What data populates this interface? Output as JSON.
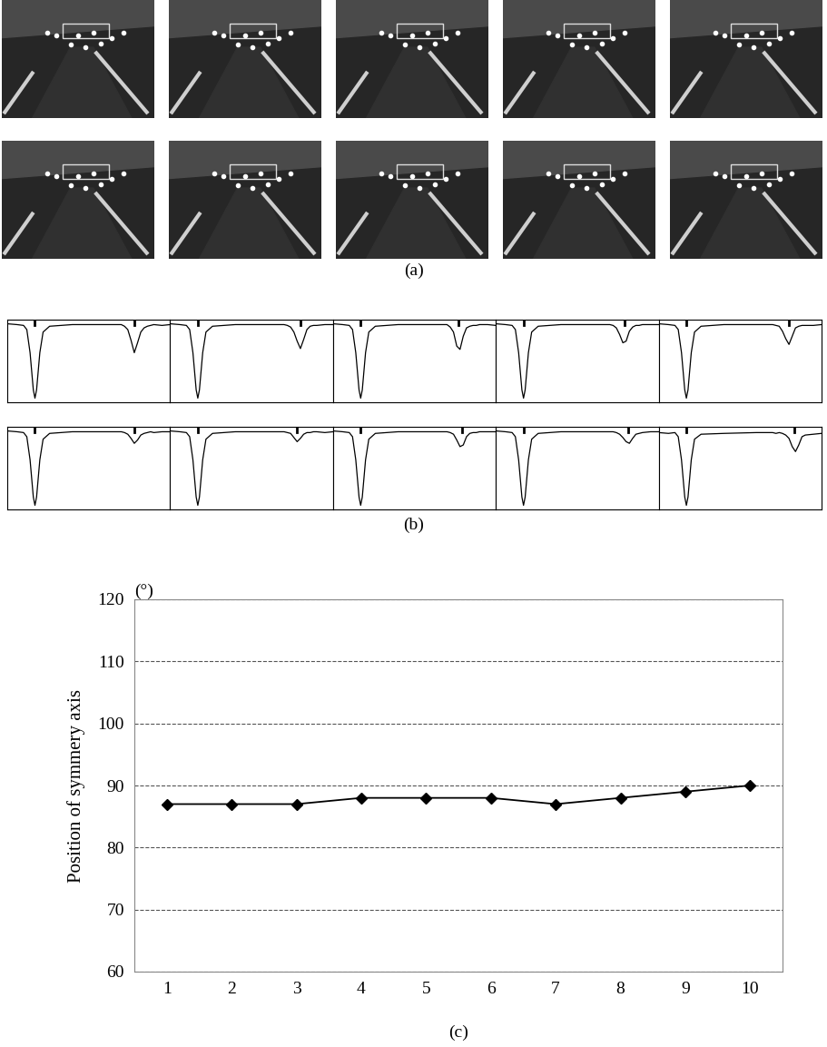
{
  "panel_a": {
    "label": "(a)",
    "frames": 10
  },
  "panel_b": {
    "label": "(b)",
    "xlim": [
      0,
      100
    ],
    "ylim": [
      0,
      1
    ],
    "x": [
      0,
      6,
      10,
      12,
      14,
      16,
      17,
      18,
      20,
      22,
      26,
      40,
      60,
      70,
      72,
      74,
      76,
      78,
      80,
      82,
      84,
      86,
      88,
      90,
      95,
      100
    ],
    "profiles": [
      {
        "marks": [
          17,
          78
        ],
        "values": [
          0.95,
          0.94,
          0.93,
          0.88,
          0.6,
          0.15,
          0.05,
          0.15,
          0.6,
          0.85,
          0.92,
          0.94,
          0.94,
          0.94,
          0.92,
          0.88,
          0.75,
          0.6,
          0.72,
          0.85,
          0.9,
          0.92,
          0.93,
          0.94,
          0.93,
          0.94
        ]
      },
      {
        "marks": [
          17,
          80
        ],
        "values": [
          0.95,
          0.94,
          0.93,
          0.88,
          0.6,
          0.15,
          0.05,
          0.15,
          0.6,
          0.85,
          0.92,
          0.94,
          0.94,
          0.94,
          0.93,
          0.91,
          0.85,
          0.74,
          0.65,
          0.76,
          0.88,
          0.92,
          0.93,
          0.93,
          0.94,
          0.94
        ]
      },
      {
        "marks": [
          17,
          77
        ],
        "values": [
          0.95,
          0.94,
          0.93,
          0.88,
          0.6,
          0.15,
          0.05,
          0.15,
          0.6,
          0.85,
          0.92,
          0.94,
          0.94,
          0.94,
          0.91,
          0.85,
          0.68,
          0.64,
          0.8,
          0.9,
          0.92,
          0.93,
          0.93,
          0.94,
          0.94,
          0.93
        ]
      },
      {
        "marks": [
          17,
          79
        ],
        "values": [
          0.95,
          0.94,
          0.93,
          0.88,
          0.6,
          0.15,
          0.05,
          0.15,
          0.6,
          0.85,
          0.92,
          0.94,
          0.94,
          0.94,
          0.93,
          0.9,
          0.82,
          0.72,
          0.74,
          0.86,
          0.91,
          0.93,
          0.93,
          0.94,
          0.94,
          0.94
        ]
      },
      {
        "marks": [
          17,
          80
        ],
        "values": [
          0.95,
          0.94,
          0.93,
          0.88,
          0.6,
          0.15,
          0.05,
          0.15,
          0.6,
          0.85,
          0.92,
          0.94,
          0.94,
          0.94,
          0.93,
          0.92,
          0.86,
          0.77,
          0.7,
          0.8,
          0.9,
          0.92,
          0.93,
          0.93,
          0.93,
          0.94
        ]
      },
      {
        "marks": [
          17,
          78
        ],
        "values": [
          0.95,
          0.94,
          0.93,
          0.88,
          0.6,
          0.15,
          0.05,
          0.15,
          0.6,
          0.85,
          0.92,
          0.94,
          0.94,
          0.94,
          0.93,
          0.91,
          0.86,
          0.8,
          0.84,
          0.9,
          0.92,
          0.93,
          0.94,
          0.93,
          0.94,
          0.94
        ]
      },
      {
        "marks": [
          17,
          78
        ],
        "values": [
          0.95,
          0.94,
          0.93,
          0.88,
          0.6,
          0.15,
          0.05,
          0.15,
          0.6,
          0.85,
          0.92,
          0.94,
          0.94,
          0.94,
          0.93,
          0.92,
          0.87,
          0.82,
          0.86,
          0.91,
          0.93,
          0.93,
          0.94,
          0.94,
          0.93,
          0.94
        ]
      },
      {
        "marks": [
          17,
          79
        ],
        "values": [
          0.95,
          0.94,
          0.93,
          0.88,
          0.6,
          0.15,
          0.05,
          0.15,
          0.6,
          0.85,
          0.92,
          0.94,
          0.94,
          0.94,
          0.93,
          0.91,
          0.84,
          0.76,
          0.78,
          0.88,
          0.92,
          0.93,
          0.93,
          0.94,
          0.94,
          0.94
        ]
      },
      {
        "marks": [
          17,
          81
        ],
        "values": [
          0.95,
          0.94,
          0.93,
          0.88,
          0.6,
          0.15,
          0.05,
          0.15,
          0.6,
          0.85,
          0.92,
          0.94,
          0.94,
          0.94,
          0.94,
          0.93,
          0.91,
          0.87,
          0.82,
          0.8,
          0.86,
          0.91,
          0.92,
          0.93,
          0.94,
          0.94
        ]
      },
      {
        "marks": [
          17,
          83
        ],
        "values": [
          0.93,
          0.92,
          0.93,
          0.88,
          0.6,
          0.15,
          0.05,
          0.15,
          0.6,
          0.85,
          0.91,
          0.92,
          0.93,
          0.93,
          0.92,
          0.93,
          0.92,
          0.9,
          0.86,
          0.76,
          0.7,
          0.78,
          0.88,
          0.9,
          0.91,
          0.92
        ]
      }
    ]
  },
  "chart_data": {
    "type": "line",
    "label": "(c)",
    "y_label": "Position of symmery axis",
    "y_unit": "(°)",
    "x": [
      1,
      2,
      3,
      4,
      5,
      6,
      7,
      8,
      9,
      10
    ],
    "values": [
      87,
      87,
      87,
      88,
      88,
      88,
      87,
      88,
      89,
      90
    ],
    "xlim": [
      0.5,
      10.5
    ],
    "xticks": [
      1,
      2,
      3,
      4,
      5,
      6,
      7,
      8,
      9,
      10
    ],
    "ylim": [
      60,
      120
    ],
    "yticks": [
      60,
      70,
      80,
      90,
      100,
      110,
      120
    ],
    "grid": true,
    "color": "#000000",
    "marker": "diamond",
    "line_style": "solid"
  }
}
